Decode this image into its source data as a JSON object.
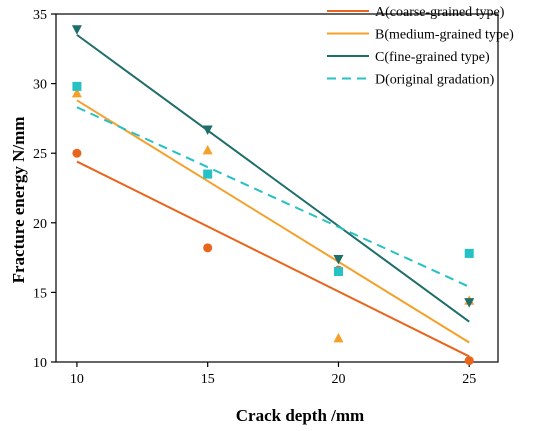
{
  "chart_data": {
    "type": "scatter",
    "xlabel": "Crack depth /mm",
    "ylabel": "Fracture energy N/mm",
    "xlim": [
      9.2,
      26.1
    ],
    "ylim": [
      10,
      35
    ],
    "xticks": [
      10,
      15,
      20,
      25
    ],
    "yticks": [
      10,
      15,
      20,
      25,
      30,
      35
    ],
    "grid": false,
    "legend_position": "top-right",
    "series": [
      {
        "name": "A(coarse-grained type)",
        "color": "#e8651b",
        "marker": "circle",
        "line_style": "solid",
        "x": [
          10,
          15,
          20,
          25
        ],
        "y": [
          25.0,
          18.2,
          16.6,
          10.1
        ],
        "fit": [
          24.4,
          10.4
        ]
      },
      {
        "name": "B(medium-grained type)",
        "color": "#f5a02a",
        "marker": "triangle-up",
        "line_style": "solid",
        "x": [
          10,
          15,
          20,
          25
        ],
        "y": [
          29.3,
          25.2,
          11.7,
          14.4
        ],
        "fit": [
          28.8,
          11.4
        ]
      },
      {
        "name": "C(fine-grained type)",
        "color": "#1e6e6a",
        "marker": "triangle-down",
        "line_style": "solid",
        "x": [
          10,
          15,
          20,
          25
        ],
        "y": [
          33.9,
          26.7,
          17.4,
          14.3
        ],
        "fit": [
          33.5,
          12.9
        ]
      },
      {
        "name": "D(original gradation)",
        "color": "#26c1c4",
        "marker": "square",
        "line_style": "dashed",
        "x": [
          10,
          15,
          20,
          25
        ],
        "y": [
          29.8,
          23.5,
          16.5,
          17.8
        ],
        "fit": [
          28.3,
          15.4
        ]
      }
    ]
  }
}
